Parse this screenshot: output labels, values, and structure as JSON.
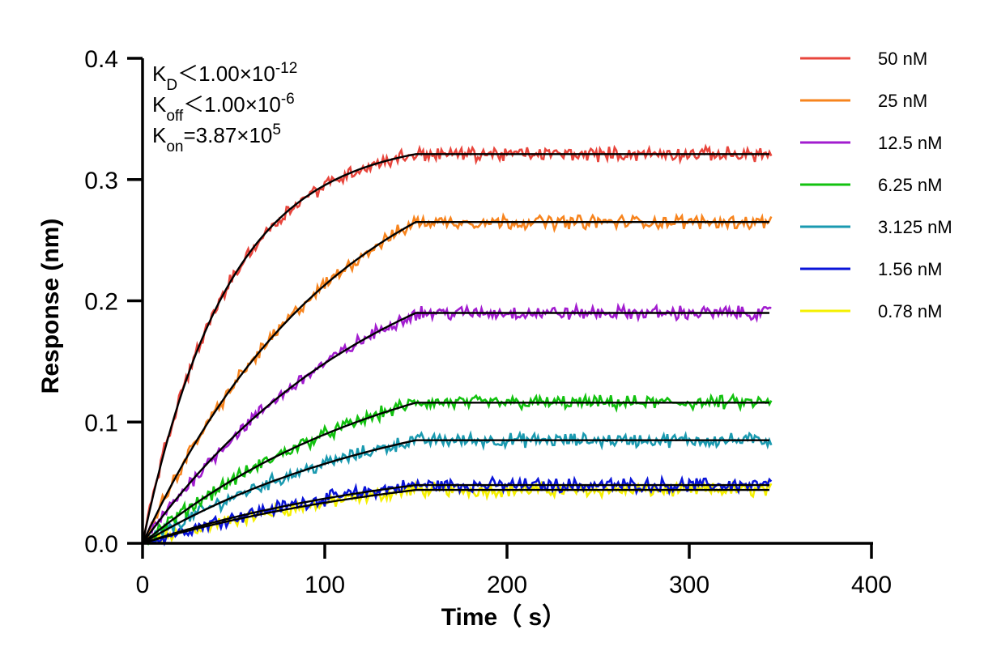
{
  "chart_data": {
    "type": "line",
    "xlabel": "Time（ s）",
    "ylabel": "Response (nm)",
    "xlim": [
      0,
      400
    ],
    "ylim": [
      0,
      0.4
    ],
    "x_ticks": [
      "0",
      "100",
      "200",
      "300",
      "400"
    ],
    "y_ticks": [
      "0.0",
      "0.1",
      "0.2",
      "0.3",
      "0.4"
    ],
    "association_end_s": 150,
    "curve_end_s": 345,
    "grid": false,
    "legend_position": "right",
    "annotations": [
      {
        "base": "K",
        "sub": "D",
        "rel": "＜",
        "mant": "1.00×10",
        "exp": "-12"
      },
      {
        "base": "K",
        "sub": "off",
        "rel": "＜",
        "mant": "1.00×10",
        "exp": "-6"
      },
      {
        "base": "K",
        "sub": "on",
        "rel": "=",
        "mant": "3.87×10",
        "exp": "5"
      }
    ],
    "series": [
      {
        "name": "50 nM",
        "color": "#e8453c",
        "plateau": 0.321,
        "k": 0.0215,
        "noise": 0.0045
      },
      {
        "name": "25 nM",
        "color": "#f7841e",
        "plateau": 0.265,
        "k": 0.0092,
        "noise": 0.0045
      },
      {
        "name": "12.5 nM",
        "color": "#a21ccf",
        "plateau": 0.19,
        "k": 0.0075,
        "noise": 0.0045
      },
      {
        "name": "6.25 nM",
        "color": "#12c20f",
        "plateau": 0.116,
        "k": 0.007,
        "noise": 0.0045
      },
      {
        "name": "3.125 nM",
        "color": "#1a9ab0",
        "plateau": 0.085,
        "k": 0.0068,
        "noise": 0.0045
      },
      {
        "name": "1.56 nM",
        "color": "#0a14d9",
        "plateau": 0.048,
        "k": 0.0065,
        "noise": 0.0045
      },
      {
        "name": "0.78 nM",
        "color": "#f5f000",
        "plateau": 0.044,
        "k": 0.006,
        "noise": 0.0045
      }
    ]
  }
}
